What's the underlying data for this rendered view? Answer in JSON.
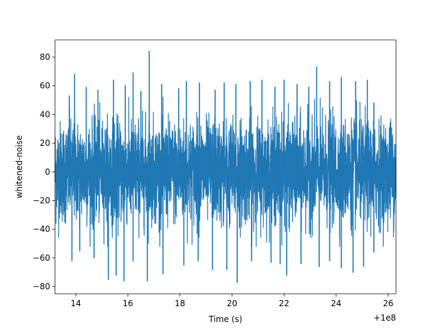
{
  "chart_data": {
    "type": "line",
    "title": "",
    "xlabel": "Time (s)",
    "ylabel": "whitened-noise",
    "x_offset_label": "+1e8",
    "xlim": [
      13.2,
      26.3
    ],
    "ylim": [
      -85,
      92
    ],
    "x_ticks": [
      14,
      16,
      18,
      20,
      22,
      24,
      26
    ],
    "y_ticks": [
      -80,
      -60,
      -40,
      -20,
      0,
      20,
      40,
      60,
      80
    ],
    "x_range": [
      13.6,
      25.7
    ],
    "series": [
      {
        "color": "#1f77b4",
        "typical_envelope": [
          -40,
          40
        ],
        "peaks_upper": [
          {
            "x": 13.75,
            "y": 53
          },
          {
            "x": 13.95,
            "y": 68
          },
          {
            "x": 14.4,
            "y": 59
          },
          {
            "x": 14.85,
            "y": 57
          },
          {
            "x": 15.45,
            "y": 64
          },
          {
            "x": 15.9,
            "y": 60
          },
          {
            "x": 16.2,
            "y": 69
          },
          {
            "x": 16.5,
            "y": 56
          },
          {
            "x": 16.82,
            "y": 84
          },
          {
            "x": 17.3,
            "y": 61
          },
          {
            "x": 17.95,
            "y": 58
          },
          {
            "x": 18.25,
            "y": 63
          },
          {
            "x": 18.75,
            "y": 62
          },
          {
            "x": 19.35,
            "y": 57
          },
          {
            "x": 19.7,
            "y": 62
          },
          {
            "x": 20.15,
            "y": 61
          },
          {
            "x": 20.7,
            "y": 63
          },
          {
            "x": 21.15,
            "y": 64
          },
          {
            "x": 21.65,
            "y": 59
          },
          {
            "x": 22.0,
            "y": 64
          },
          {
            "x": 22.5,
            "y": 61
          },
          {
            "x": 22.95,
            "y": 59
          },
          {
            "x": 23.25,
            "y": 73
          },
          {
            "x": 23.75,
            "y": 63
          },
          {
            "x": 24.2,
            "y": 66
          },
          {
            "x": 24.75,
            "y": 63
          },
          {
            "x": 25.2,
            "y": 64
          },
          {
            "x": 25.45,
            "y": 48
          }
        ],
        "peaks_lower": [
          {
            "x": 13.85,
            "y": -62
          },
          {
            "x": 14.15,
            "y": -55
          },
          {
            "x": 14.7,
            "y": -60
          },
          {
            "x": 15.25,
            "y": -75
          },
          {
            "x": 15.55,
            "y": -72
          },
          {
            "x": 15.85,
            "y": -76
          },
          {
            "x": 16.2,
            "y": -62
          },
          {
            "x": 16.75,
            "y": -76
          },
          {
            "x": 17.35,
            "y": -71
          },
          {
            "x": 18.15,
            "y": -65
          },
          {
            "x": 18.7,
            "y": -62
          },
          {
            "x": 19.25,
            "y": -68
          },
          {
            "x": 19.8,
            "y": -68
          },
          {
            "x": 20.2,
            "y": -77
          },
          {
            "x": 20.75,
            "y": -62
          },
          {
            "x": 21.5,
            "y": -63
          },
          {
            "x": 21.85,
            "y": -64
          },
          {
            "x": 22.1,
            "y": -72
          },
          {
            "x": 22.65,
            "y": -64
          },
          {
            "x": 23.35,
            "y": -66
          },
          {
            "x": 23.75,
            "y": -62
          },
          {
            "x": 24.2,
            "y": -67
          },
          {
            "x": 24.65,
            "y": -70
          },
          {
            "x": 25.05,
            "y": -66
          },
          {
            "x": 25.45,
            "y": -56
          }
        ]
      }
    ],
    "grid": false,
    "legend": "none"
  }
}
